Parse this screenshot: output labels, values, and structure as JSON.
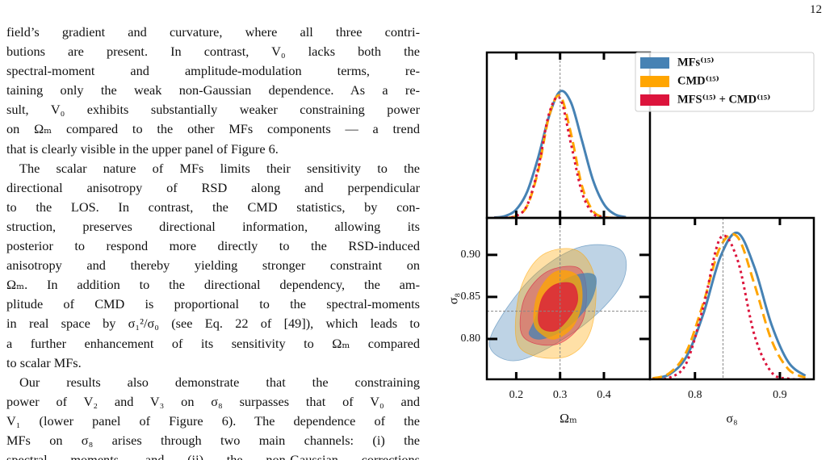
{
  "page_number": "12",
  "text": {
    "paragraphs": [
      [
        "field’s gradient and curvature, where all three contri-",
        "butions are present.  In contrast, V₀ lacks both the",
        "spectral-moment and amplitude-modulation terms, re-",
        "taining only the weak non-Gaussian dependence. As a re-",
        "sult, V₀ exhibits substantially weaker constraining power",
        "on Ωₘ compared to the other MFs components — a trend",
        "that is clearly visible in the upper panel of Figure 6."
      ],
      [
        "The scalar nature of MFs limits their sensitivity to the",
        "directional anisotropy of RSD along and perpendicular",
        "to the LOS. In contrast, the CMD statistics, by con-",
        "struction, preserves directional information, allowing its",
        "posterior to respond more directly to the RSD-induced",
        "anisotropy and thereby yielding stronger constraint on",
        "Ωₘ. In addition to the directional dependency, the am-",
        "plitude of CMD is proportional to the spectral-moments",
        "in real space by σ₁²/σ₀ (see Eq. 22 of [49]), which leads to",
        "a further enhancement of its sensitivity to Ωₘ compared",
        "to scalar MFs."
      ],
      [
        "Our results also demonstrate that the constraining",
        "power of V₂ and V₃ on σ₈ surpasses that of V₀ and",
        "V₁ (lower panel of Figure 6). The dependence of the",
        "MFs on σ₈ arises through two main channels: (i) the",
        "spectral moments, and (ii) the non-Gaussian corrections"
      ]
    ]
  },
  "chart_data": [
    {
      "type": "line",
      "legend": "upper right",
      "xlim": [
        0.133,
        0.505
      ],
      "ylim": [
        0,
        1.3
      ],
      "xticks": [
        0.2,
        0.3,
        0.4
      ],
      "reference_x": 0.3,
      "x": [
        0.15,
        0.175,
        0.2,
        0.225,
        0.25,
        0.275,
        0.3,
        0.325,
        0.35,
        0.375,
        0.4,
        0.425,
        0.45
      ],
      "series": [
        {
          "name": "MFs⁽¹⁵⁾",
          "color": "#4682b4",
          "style": "solid",
          "values": [
            0.003,
            0.015,
            0.066,
            0.206,
            0.474,
            0.8,
            0.994,
            0.906,
            0.607,
            0.298,
            0.108,
            0.028,
            0.006
          ]
        },
        {
          "name": "CMD⁽¹⁵⁾",
          "color": "#ffa500",
          "style": "dashed",
          "values": [
            0,
            0.001,
            0.015,
            0.096,
            0.37,
            0.8,
            0.96,
            0.66,
            0.25,
            0.055,
            0.007,
            0,
            0
          ]
        },
        {
          "name": "MFS⁽¹⁵⁾ + CMD⁽¹⁵⁾",
          "color": "#dc143c",
          "style": "dotted",
          "values": [
            0,
            0.001,
            0.015,
            0.1,
            0.39,
            0.82,
            0.94,
            0.58,
            0.2,
            0.036,
            0.004,
            0,
            0
          ]
        }
      ]
    },
    {
      "type": "contour",
      "xlabel": "Ωₘ",
      "ylabel": "σ₈",
      "xlim": [
        0.133,
        0.505
      ],
      "ylim": [
        0.752,
        0.944
      ],
      "xticks": [
        0.2,
        0.3,
        0.4
      ],
      "yticks": [
        {
          "value": 0.9,
          "label": "0.90"
        },
        {
          "value": 0.85,
          "label": "0.85"
        },
        {
          "value": 0.8,
          "label": "0.80"
        }
      ],
      "reference_x": 0.3,
      "reference_y": 0.833,
      "series": [
        {
          "color": "#4682b4",
          "contours": [
            {
              "x": [
                0.14,
                0.17,
                0.25,
                0.35,
                0.44,
                0.44,
                0.35,
                0.21
              ],
              "values": [
                0.79,
                0.83,
                0.88,
                0.91,
                0.905,
                0.865,
                0.815,
                0.775
              ]
            },
            {
              "x": [
                0.24,
                0.27,
                0.33,
                0.38,
                0.37,
                0.32,
                0.26,
                0.23
              ],
              "values": [
                0.82,
                0.855,
                0.875,
                0.875,
                0.845,
                0.815,
                0.8,
                0.805
              ]
            }
          ]
        },
        {
          "color": "#ffa500",
          "contours": [
            {
              "x": [
                0.2,
                0.21,
                0.26,
                0.34,
                0.38,
                0.37,
                0.32,
                0.24
              ],
              "values": [
                0.8,
                0.86,
                0.9,
                0.905,
                0.87,
                0.81,
                0.78,
                0.78
              ]
            },
            {
              "x": [
                0.24,
                0.25,
                0.29,
                0.34,
                0.35,
                0.33,
                0.29,
                0.26
              ],
              "values": [
                0.82,
                0.855,
                0.88,
                0.875,
                0.845,
                0.815,
                0.8,
                0.805
              ]
            }
          ]
        },
        {
          "color": "#dc143c",
          "contours": [
            {
              "x": [
                0.21,
                0.22,
                0.27,
                0.34,
                0.36,
                0.35,
                0.3,
                0.24
              ],
              "values": [
                0.81,
                0.85,
                0.88,
                0.885,
                0.86,
                0.82,
                0.795,
                0.795
              ]
            },
            {
              "x": [
                0.25,
                0.26,
                0.29,
                0.33,
                0.34,
                0.32,
                0.29,
                0.26
              ],
              "values": [
                0.825,
                0.85,
                0.865,
                0.865,
                0.845,
                0.825,
                0.81,
                0.812
              ]
            }
          ]
        }
      ]
    },
    {
      "type": "line",
      "xlabel": "σ₈",
      "xlim": [
        0.747,
        0.94
      ],
      "ylim": [
        0,
        1.1
      ],
      "xticks": [
        0.8,
        0.9
      ],
      "reference_x": 0.833,
      "x": [
        0.75,
        0.77,
        0.79,
        0.81,
        0.83,
        0.85,
        0.87,
        0.89,
        0.91,
        0.93
      ],
      "series": [
        {
          "color": "#4682b4",
          "style": "solid",
          "values": [
            0.005,
            0.034,
            0.155,
            0.448,
            0.835,
            0.998,
            0.764,
            0.375,
            0.117,
            0.024
          ]
        },
        {
          "color": "#ffa500",
          "style": "dashed",
          "values": [
            0.006,
            0.042,
            0.188,
            0.523,
            0.904,
            0.971,
            0.648,
            0.269,
            0.069,
            0.011
          ]
        },
        {
          "color": "#dc143c",
          "style": "dotted",
          "values": [
            0,
            0.011,
            0.112,
            0.498,
            0.964,
            0.816,
            0.302,
            0.049,
            0.004,
            0
          ]
        }
      ]
    }
  ]
}
